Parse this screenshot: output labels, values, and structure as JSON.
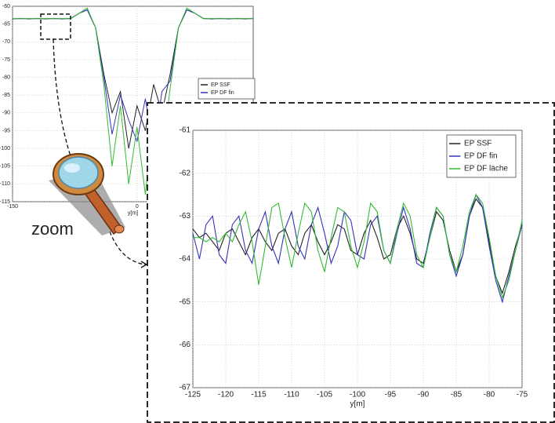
{
  "label": "zoom",
  "chart_data": [
    {
      "type": "line",
      "xlabel": "y[m]",
      "x": [
        -150,
        -140,
        -130,
        -120,
        -110,
        -100,
        -90,
        -80,
        -70,
        -60,
        -50,
        -40,
        -30,
        -20,
        -10,
        0,
        10,
        20,
        30,
        40,
        50,
        60,
        70,
        80,
        90,
        100,
        110,
        120,
        130,
        140
      ],
      "xlim": [
        -150,
        140
      ],
      "xticks": [
        -150,
        0
      ],
      "ylim": [
        -115,
        -60
      ],
      "yticks": [
        -60,
        -65,
        -70,
        -75,
        -80,
        -85,
        -90,
        -95,
        -100,
        -105,
        -110,
        -115
      ],
      "grid": true,
      "series": [
        {
          "name": "EP SSF",
          "color": "#222222",
          "values": [
            -63.5,
            -63.5,
            -63.5,
            -63.5,
            -63.5,
            -63.5,
            -63.5,
            -63.5,
            -62,
            -61,
            -66,
            -79,
            -90,
            -84,
            -100,
            -88,
            -95,
            -82,
            -90,
            -79,
            -66,
            -61,
            -62,
            -63.5,
            -63.5,
            -63.5,
            -63.5,
            -63.5,
            -63.5,
            -63.5
          ]
        },
        {
          "name": "EP DF fin",
          "color": "#3333bb",
          "values": [
            -63.6,
            -63.4,
            -63.6,
            -63.4,
            -63.6,
            -63.4,
            -63.6,
            -63.4,
            -62,
            -61,
            -66,
            -80,
            -96,
            -85,
            -92,
            -98,
            -86,
            -100,
            -84,
            -81,
            -66,
            -61,
            -62,
            -63.4,
            -63.6,
            -63.4,
            -63.6,
            -63.4,
            -63.6,
            -63.4
          ]
        },
        {
          "color": "#33bb33",
          "values": [
            -63.5,
            -63.5,
            -63.5,
            -63.5,
            -63.5,
            -63.5,
            -63.5,
            -63.5,
            -62,
            -60.5,
            -66,
            -82,
            -105,
            -88,
            -110,
            -94,
            -113,
            -90,
            -102,
            -83,
            -66,
            -60.5,
            -62,
            -63.5,
            -63.5,
            -63.5,
            -63.5,
            -63.5,
            -63.5,
            -63.5
          ]
        }
      ]
    },
    {
      "type": "line",
      "xlabel": "y[m]",
      "x": [
        -125,
        -124,
        -123,
        -122,
        -121,
        -120,
        -119,
        -118,
        -117,
        -116,
        -115,
        -114,
        -113,
        -112,
        -111,
        -110,
        -109,
        -108,
        -107,
        -106,
        -105,
        -104,
        -103,
        -102,
        -101,
        -100,
        -99,
        -98,
        -97,
        -96,
        -95,
        -94,
        -93,
        -92,
        -91,
        -90,
        -89,
        -88,
        -87,
        -86,
        -85,
        -84,
        -83,
        -82,
        -81,
        -80,
        -79,
        -78,
        -77,
        -76,
        -75
      ],
      "xlim": [
        -125,
        -75
      ],
      "xticks": [
        -125,
        -120,
        -115,
        -110,
        -105,
        -100,
        -95,
        -90,
        -85,
        -80,
        -75
      ],
      "ylim": [
        -67,
        -61
      ],
      "yticks": [
        -61,
        -62,
        -63,
        -64,
        -65,
        -66,
        -67
      ],
      "grid": true,
      "legend": "upper right",
      "series": [
        {
          "name": "EP SSF",
          "color": "#222222",
          "values": [
            -63.3,
            -63.5,
            -63.4,
            -63.6,
            -63.8,
            -63.4,
            -63.3,
            -63.6,
            -63.9,
            -63.5,
            -63.3,
            -63.6,
            -63.8,
            -63.4,
            -63.3,
            -63.7,
            -63.9,
            -63.4,
            -63.2,
            -63.6,
            -63.9,
            -63.6,
            -63.2,
            -63.3,
            -63.8,
            -63.9,
            -63.4,
            -63.1,
            -63.5,
            -64.0,
            -63.9,
            -63.3,
            -63.0,
            -63.4,
            -64.0,
            -64.1,
            -63.5,
            -62.9,
            -63.1,
            -63.8,
            -64.3,
            -63.9,
            -63.0,
            -62.6,
            -62.8,
            -63.6,
            -64.4,
            -64.8,
            -64.3,
            -63.7,
            -63.2
          ]
        },
        {
          "name": "EP DF fin",
          "color": "#3333bb",
          "values": [
            -63.4,
            -64.0,
            -63.2,
            -63.0,
            -63.9,
            -64.1,
            -63.2,
            -63.0,
            -63.8,
            -64.1,
            -63.3,
            -62.9,
            -63.7,
            -64.1,
            -63.3,
            -62.9,
            -63.7,
            -64.0,
            -63.2,
            -62.8,
            -63.4,
            -64.1,
            -63.7,
            -62.9,
            -63.1,
            -63.9,
            -64.0,
            -63.2,
            -63.0,
            -63.8,
            -64.1,
            -63.4,
            -62.8,
            -63.3,
            -64.1,
            -64.2,
            -63.4,
            -62.8,
            -63.0,
            -63.9,
            -64.4,
            -63.9,
            -63.0,
            -62.5,
            -62.8,
            -63.7,
            -64.5,
            -65.0,
            -64.4,
            -63.8,
            -63.2
          ]
        },
        {
          "name": "EP DF läche",
          "color": "#33bb33",
          "values": [
            -63.5,
            -63.5,
            -63.6,
            -63.5,
            -63.6,
            -63.4,
            -63.6,
            -63.2,
            -62.9,
            -63.6,
            -64.6,
            -63.7,
            -62.8,
            -62.7,
            -63.5,
            -64.2,
            -63.4,
            -62.7,
            -62.9,
            -63.8,
            -64.3,
            -63.5,
            -62.8,
            -62.9,
            -63.7,
            -64.2,
            -63.6,
            -62.7,
            -62.9,
            -63.8,
            -64.1,
            -63.3,
            -62.7,
            -63.0,
            -63.9,
            -64.2,
            -63.5,
            -62.8,
            -63.0,
            -63.9,
            -64.3,
            -63.7,
            -62.9,
            -62.5,
            -62.7,
            -63.5,
            -64.4,
            -64.9,
            -64.5,
            -63.8,
            -63.1
          ]
        }
      ]
    }
  ]
}
